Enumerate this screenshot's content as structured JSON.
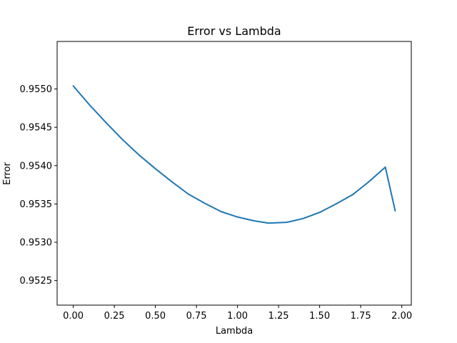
{
  "chart_data": {
    "type": "line",
    "title": "Error vs Lambda",
    "xlabel": "Lambda",
    "ylabel": "Error",
    "xlim": [
      -0.098,
      2.058
    ],
    "ylim": [
      0.95218,
      0.95562
    ],
    "x_ticks": [
      0.0,
      0.25,
      0.5,
      0.75,
      1.0,
      1.25,
      1.5,
      1.75,
      2.0
    ],
    "x_tick_labels": [
      "0.00",
      "0.25",
      "0.50",
      "0.75",
      "1.00",
      "1.25",
      "1.50",
      "1.75",
      "2.00"
    ],
    "y_ticks": [
      0.9525,
      0.953,
      0.9535,
      0.954,
      0.9545,
      0.955
    ],
    "y_tick_labels": [
      "0.9525",
      "0.9530",
      "0.9535",
      "0.9540",
      "0.9545",
      "0.9550"
    ],
    "grid": false,
    "legend": "none",
    "series": [
      {
        "color": "#1f77b4",
        "x": [
          0.0,
          0.1,
          0.2,
          0.3,
          0.4,
          0.5,
          0.6,
          0.7,
          0.8,
          0.9,
          1.0,
          1.1,
          1.19,
          1.3,
          1.4,
          1.5,
          1.6,
          1.7,
          1.8,
          1.9,
          1.96
        ],
        "y": [
          0.95504,
          0.95479,
          0.95456,
          0.95434,
          0.95414,
          0.95396,
          0.95379,
          0.95363,
          0.95351,
          0.9534,
          0.95333,
          0.95328,
          0.95325,
          0.95326,
          0.95331,
          0.95339,
          0.9535,
          0.95362,
          0.95379,
          0.95398,
          0.95341
        ]
      }
    ]
  }
}
